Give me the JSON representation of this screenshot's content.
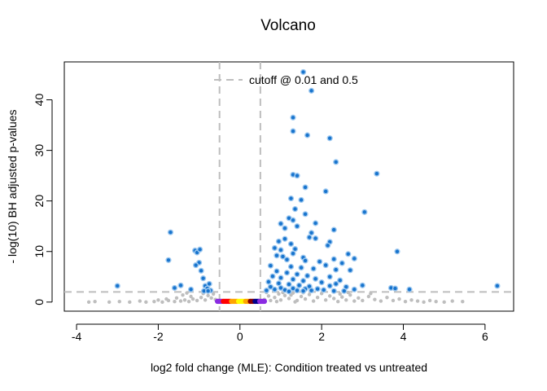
{
  "colors": {
    "significant": "#1874CD",
    "significant_halo": "#9FC9F0",
    "nonsignificant": "#BEBEBE",
    "cutoff_line": "#BEBEBE",
    "density_core": [
      "#FF0000",
      "#FFA500",
      "#FFFF00",
      "#8B0000",
      "#00008B",
      "#8A2BE2"
    ]
  },
  "chart_data": {
    "type": "scatter",
    "title": "Volcano",
    "xlabel": "log2 fold change (MLE): Condition treated vs untreated",
    "ylabel": "- log(10) BH adjusted p-values",
    "xlim": [
      -4.3,
      6.7
    ],
    "ylim": [
      -1.8,
      47.5
    ],
    "xticks": [
      "-4",
      "-2",
      "0",
      "2",
      "4",
      "6"
    ],
    "yticks": [
      "0",
      "10",
      "20",
      "30",
      "40"
    ],
    "legend": {
      "label": "cutoff @ 0.01 and 0.5",
      "position": "top-center"
    },
    "cutoffs": {
      "fold_change": 0.5,
      "neg_log10_padj": 2
    },
    "grid": false,
    "series": [
      {
        "name": "significant",
        "points": [
          [
            -3.0,
            3.2
          ],
          [
            -1.7,
            13.8
          ],
          [
            -1.75,
            8.3
          ],
          [
            -1.6,
            2.8
          ],
          [
            -1.45,
            3.3
          ],
          [
            -1.1,
            10.2
          ],
          [
            -1.05,
            9.8
          ],
          [
            -0.98,
            10.4
          ],
          [
            -1.0,
            7.8
          ],
          [
            -0.95,
            6.2
          ],
          [
            -1.08,
            7.3
          ],
          [
            -0.9,
            4.7
          ],
          [
            -0.85,
            3.2
          ],
          [
            -0.8,
            2.7
          ],
          [
            -0.75,
            3.6
          ],
          [
            -0.72,
            2.3
          ],
          [
            -1.2,
            2.5
          ],
          [
            -0.88,
            2.2
          ],
          [
            -0.78,
            2.2
          ],
          [
            1.55,
            45.5
          ],
          [
            1.75,
            41.8
          ],
          [
            1.3,
            36.5
          ],
          [
            1.3,
            33.8
          ],
          [
            1.65,
            33.0
          ],
          [
            2.2,
            32.4
          ],
          [
            2.35,
            27.7
          ],
          [
            3.35,
            25.4
          ],
          [
            1.3,
            25.2
          ],
          [
            1.4,
            25.0
          ],
          [
            1.6,
            22.7
          ],
          [
            2.1,
            21.9
          ],
          [
            1.25,
            20.5
          ],
          [
            1.5,
            20.2
          ],
          [
            1.35,
            18.4
          ],
          [
            3.05,
            17.8
          ],
          [
            1.6,
            17.4
          ],
          [
            1.2,
            16.6
          ],
          [
            1.3,
            16.2
          ],
          [
            1.0,
            15.5
          ],
          [
            1.4,
            15.0
          ],
          [
            1.85,
            15.6
          ],
          [
            1.1,
            14.6
          ],
          [
            2.3,
            14.3
          ],
          [
            1.75,
            13.7
          ],
          [
            1.7,
            12.8
          ],
          [
            1.85,
            12.6
          ],
          [
            1.1,
            12.5
          ],
          [
            0.95,
            12.0
          ],
          [
            1.25,
            11.5
          ],
          [
            2.2,
            11.9
          ],
          [
            2.15,
            11.2
          ],
          [
            0.85,
            10.7
          ],
          [
            1.0,
            10.3
          ],
          [
            1.35,
            10.5
          ],
          [
            3.85,
            10.0
          ],
          [
            1.3,
            9.6
          ],
          [
            2.65,
            9.5
          ],
          [
            0.9,
            9.2
          ],
          [
            1.05,
            9.0
          ],
          [
            1.55,
            8.8
          ],
          [
            2.3,
            8.5
          ],
          [
            2.8,
            8.6
          ],
          [
            1.15,
            8.4
          ],
          [
            1.6,
            8.2
          ],
          [
            1.95,
            8.0
          ],
          [
            2.1,
            7.3
          ],
          [
            2.5,
            7.7
          ],
          [
            0.75,
            7.2
          ],
          [
            1.25,
            7.0
          ],
          [
            1.5,
            6.8
          ],
          [
            1.8,
            6.6
          ],
          [
            2.35,
            6.4
          ],
          [
            2.7,
            6.3
          ],
          [
            0.9,
            6.1
          ],
          [
            1.15,
            5.8
          ],
          [
            1.4,
            5.5
          ],
          [
            1.65,
            5.2
          ],
          [
            2.2,
            5.0
          ],
          [
            0.8,
            5.1
          ],
          [
            1.0,
            4.8
          ],
          [
            1.3,
            4.5
          ],
          [
            1.55,
            4.2
          ],
          [
            1.85,
            4.6
          ],
          [
            2.45,
            4.3
          ],
          [
            2.0,
            3.9
          ],
          [
            2.35,
            3.6
          ],
          [
            0.7,
            4.0
          ],
          [
            0.95,
            3.7
          ],
          [
            1.2,
            3.5
          ],
          [
            1.45,
            3.3
          ],
          [
            1.7,
            3.1
          ],
          [
            2.2,
            3.2
          ],
          [
            2.6,
            3.0
          ],
          [
            0.75,
            3.0
          ],
          [
            1.0,
            2.8
          ],
          [
            1.3,
            2.7
          ],
          [
            1.6,
            2.6
          ],
          [
            1.9,
            2.6
          ],
          [
            2.05,
            2.4
          ],
          [
            0.85,
            2.5
          ],
          [
            1.1,
            2.4
          ],
          [
            1.4,
            2.3
          ],
          [
            1.75,
            2.3
          ],
          [
            2.3,
            2.2
          ],
          [
            0.65,
            2.3
          ],
          [
            1.2,
            2.1
          ],
          [
            1.55,
            2.2
          ],
          [
            2.8,
            2.5
          ],
          [
            3.0,
            3.3
          ],
          [
            3.7,
            2.8
          ],
          [
            3.8,
            2.7
          ],
          [
            4.15,
            2.5
          ],
          [
            6.3,
            3.2
          ],
          [
            2.55,
            2.2
          ]
        ]
      },
      {
        "name": "nonsignificant",
        "points": [
          [
            -3.7,
            0.0
          ],
          [
            -3.55,
            0.1
          ],
          [
            -3.2,
            0.0
          ],
          [
            -2.95,
            0.1
          ],
          [
            -2.7,
            0.0
          ],
          [
            -2.45,
            0.2
          ],
          [
            -2.3,
            0.0
          ],
          [
            -2.1,
            0.1
          ],
          [
            -1.9,
            0.0
          ],
          [
            -1.75,
            0.3
          ],
          [
            -1.6,
            0.1
          ],
          [
            -1.45,
            0.2
          ],
          [
            -1.35,
            0.4
          ],
          [
            -1.25,
            0.1
          ],
          [
            -1.15,
            0.6
          ],
          [
            -1.05,
            0.3
          ],
          [
            -0.95,
            0.9
          ],
          [
            -0.85,
            0.4
          ],
          [
            -0.78,
            1.3
          ],
          [
            -0.7,
            0.8
          ],
          [
            -0.65,
            1.6
          ],
          [
            -0.6,
            0.5
          ],
          [
            -1.2,
            1.1
          ],
          [
            -1.4,
            1.4
          ],
          [
            -1.3,
            1.8
          ],
          [
            -0.9,
            1.7
          ],
          [
            -0.55,
            0.3
          ],
          [
            -1.55,
            0.8
          ],
          [
            -1.8,
            0.6
          ],
          [
            -2.0,
            0.4
          ],
          [
            0.6,
            0.5
          ],
          [
            0.7,
            1.2
          ],
          [
            0.75,
            0.3
          ],
          [
            0.85,
            0.9
          ],
          [
            0.95,
            1.6
          ],
          [
            1.0,
            0.4
          ],
          [
            1.1,
            1.3
          ],
          [
            1.2,
            0.7
          ],
          [
            1.3,
            1.8
          ],
          [
            1.4,
            0.3
          ],
          [
            1.5,
            1.1
          ],
          [
            1.6,
            0.6
          ],
          [
            1.7,
            1.5
          ],
          [
            1.8,
            0.2
          ],
          [
            1.9,
            0.9
          ],
          [
            2.0,
            1.7
          ],
          [
            2.1,
            0.4
          ],
          [
            2.2,
            1.2
          ],
          [
            2.3,
            0.7
          ],
          [
            2.4,
            0.1
          ],
          [
            2.5,
            1.0
          ],
          [
            2.6,
            0.4
          ],
          [
            2.7,
            1.4
          ],
          [
            2.8,
            0.2
          ],
          [
            2.9,
            0.8
          ],
          [
            3.0,
            0.3
          ],
          [
            3.15,
            1.1
          ],
          [
            3.3,
            0.5
          ],
          [
            3.45,
            0.2
          ],
          [
            3.6,
            0.9
          ],
          [
            3.75,
            0.3
          ],
          [
            3.9,
            0.6
          ],
          [
            4.05,
            0.1
          ],
          [
            4.2,
            0.4
          ],
          [
            4.35,
            0.2
          ],
          [
            4.5,
            0.0
          ],
          [
            4.65,
            0.3
          ],
          [
            4.8,
            0.1
          ],
          [
            5.0,
            0.0
          ],
          [
            5.2,
            0.2
          ],
          [
            5.45,
            0.1
          ],
          [
            0.65,
            1.9
          ],
          [
            1.05,
            1.9
          ],
          [
            1.55,
            1.85
          ],
          [
            2.45,
            1.6
          ],
          [
            3.2,
            1.7
          ],
          [
            2.65,
            1.9
          ],
          [
            1.25,
            1.4
          ],
          [
            0.9,
            0.1
          ],
          [
            1.35,
            0.05
          ]
        ]
      }
    ],
    "density_core": {
      "x_range": [
        -0.55,
        0.6
      ],
      "y_range": [
        0.0,
        0.4
      ],
      "colors": [
        "#FF0000",
        "#FFA500",
        "#FFFF00",
        "#8B0000",
        "#00008B",
        "#8A2BE2"
      ]
    }
  }
}
